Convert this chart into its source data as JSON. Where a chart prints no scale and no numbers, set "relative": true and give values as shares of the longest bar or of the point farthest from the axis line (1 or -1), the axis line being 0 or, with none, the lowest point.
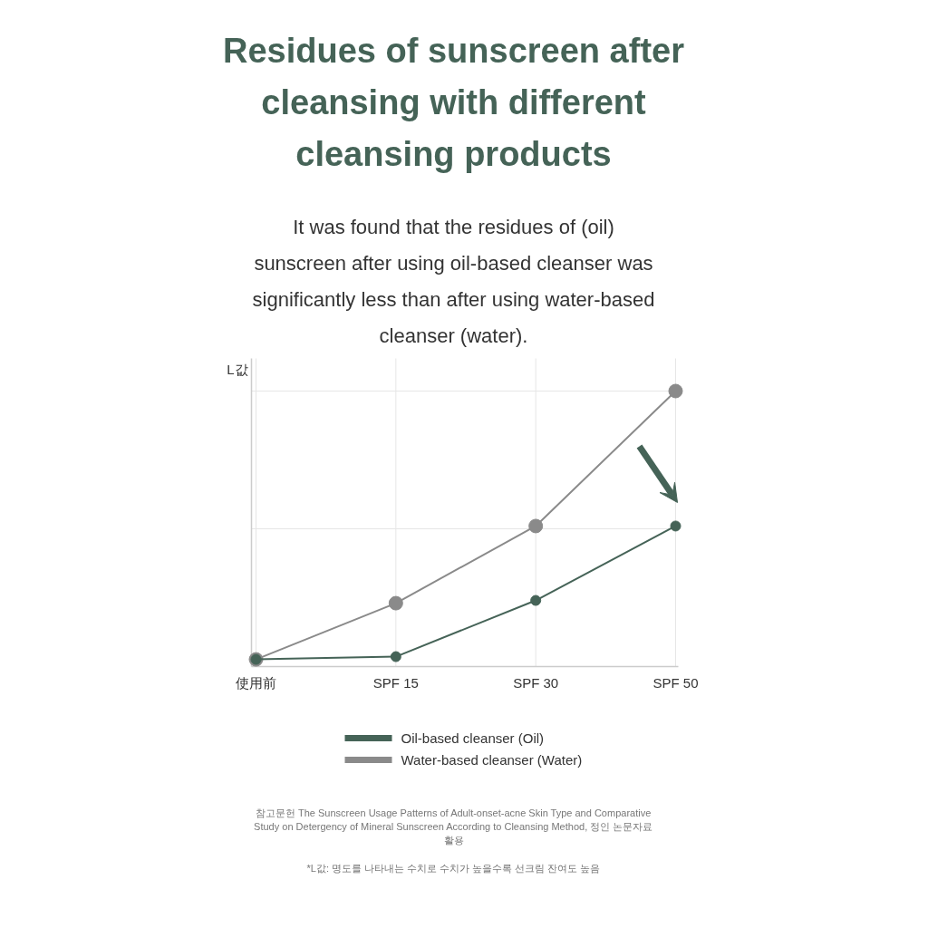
{
  "chart_data": {
    "type": "line",
    "title": "Residues of sunscreen after cleansing with different cleansing products",
    "subtitle": "It was found that the residues of (oil) sunscreen after using oil-based cleanser was significantly less than after using water-based cleanser (water).",
    "ylabel": "L값",
    "categories": [
      "使用前",
      "SPF 15",
      "SPF 30",
      "SPF 50"
    ],
    "relative": true,
    "series": [
      {
        "name": "Oil-based cleanser (Oil)",
        "color": "#456357",
        "values": [
          0.026,
          0.036,
          0.24,
          0.51
        ]
      },
      {
        "name": "Water-based cleanser (Water)",
        "color": "#8a8a8a",
        "values": [
          0.026,
          0.23,
          0.51,
          1
        ]
      }
    ],
    "marker": "circle",
    "line_style": "solid",
    "grid": true,
    "legend": "bottom",
    "annotations": [
      "참고문헌 The Sunscreen Usage Patterns of Adult-onset-acne Skin Type and Comparative Study on Detergency of Mineral Sunscreen According to Cleansing Method, 정인 논문자료 활용",
      "*L값: 명도를 나타내는 수치로 수치가 높을수록 선크림 잔여도 높음"
    ]
  }
}
